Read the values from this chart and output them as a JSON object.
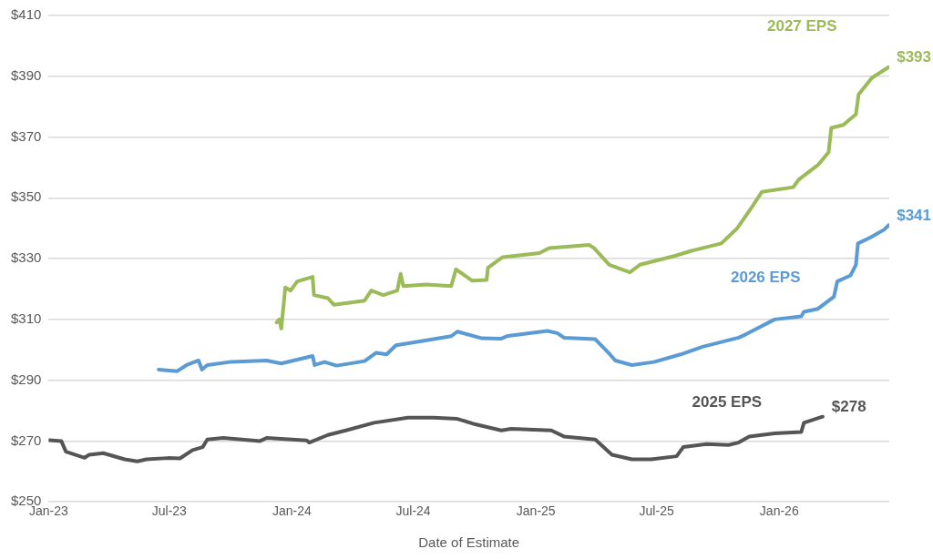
{
  "chart_data": {
    "type": "line",
    "xlabel": "Date of Estimate",
    "legend": false,
    "grid": "y",
    "marker": "none",
    "line_style": "solid",
    "xlim": [
      "2023-01-01",
      "2026-06-15"
    ],
    "xticks": [
      {
        "value": "2023-01-01",
        "label": "Jan-23"
      },
      {
        "value": "2023-07-01",
        "label": "Jul-23"
      },
      {
        "value": "2024-01-01",
        "label": "Jan-24"
      },
      {
        "value": "2024-07-01",
        "label": "Jul-24"
      },
      {
        "value": "2025-01-01",
        "label": "Jan-25"
      },
      {
        "value": "2025-07-01",
        "label": "Jul-25"
      },
      {
        "value": "2026-01-01",
        "label": "Jan-26"
      }
    ],
    "ylim": [
      250,
      410
    ],
    "yticks": [
      {
        "value": 250,
        "label": "$250"
      },
      {
        "value": 270,
        "label": "$270"
      },
      {
        "value": 290,
        "label": "$290"
      },
      {
        "value": 310,
        "label": "$310"
      },
      {
        "value": 330,
        "label": "$330"
      },
      {
        "value": 350,
        "label": "$350"
      },
      {
        "value": 370,
        "label": "$370"
      },
      {
        "value": 390,
        "label": "$390"
      },
      {
        "value": 410,
        "label": "$410"
      }
    ],
    "series": [
      {
        "name": "2025 EPS",
        "color": "#555555",
        "x": [
          "2023-01-02",
          "2023-01-20",
          "2023-01-27",
          "2023-02-24",
          "2023-03-03",
          "2023-03-24",
          "2023-04-25",
          "2023-05-14",
          "2023-05-28",
          "2023-06-29",
          "2023-07-17",
          "2023-08-05",
          "2023-08-20",
          "2023-08-27",
          "2023-09-20",
          "2023-11-14",
          "2023-11-24",
          "2024-01-23",
          "2024-01-27",
          "2024-02-24",
          "2024-03-22",
          "2024-05-03",
          "2024-06-23",
          "2024-07-31",
          "2024-09-05",
          "2024-10-02",
          "2024-11-10",
          "2024-11-25",
          "2025-01-24",
          "2025-02-12",
          "2025-03-31",
          "2025-04-25",
          "2025-05-25",
          "2025-06-23",
          "2025-07-31",
          "2025-08-10",
          "2025-09-14",
          "2025-10-17",
          "2025-11-01",
          "2025-11-17",
          "2025-12-25",
          "2026-02-03",
          "2026-02-07",
          "2026-03-07"
        ],
        "values": [
          270.3,
          270,
          266.5,
          264.5,
          265.5,
          266,
          264,
          263.3,
          264,
          264.4,
          264.3,
          267,
          268,
          270.5,
          271,
          270,
          271,
          270.2,
          269.5,
          272,
          273.5,
          276,
          277.7,
          277.7,
          277.3,
          275.5,
          273.5,
          274,
          273.5,
          271.5,
          270.5,
          265.5,
          264,
          264,
          265,
          268,
          269,
          268.7,
          269.5,
          271.5,
          272.5,
          273,
          276,
          278
        ],
        "value_labels": [
          null,
          null,
          null,
          null,
          null,
          null,
          null,
          null,
          null,
          null,
          null,
          null,
          null,
          null,
          null,
          null,
          null,
          null,
          null,
          null,
          null,
          null,
          null,
          null,
          null,
          null,
          null,
          null,
          null,
          null,
          null,
          null,
          null,
          null,
          null,
          null,
          null,
          null,
          null,
          null,
          null,
          null,
          null,
          "$278"
        ]
      },
      {
        "name": "2026 EPS",
        "color": "#5b9bd5",
        "x": [
          "2023-06-15",
          "2023-07-13",
          "2023-07-27",
          "2023-08-14",
          "2023-08-19",
          "2023-08-27",
          "2023-09-30",
          "2023-11-24",
          "2023-12-16",
          "2024-02-01",
          "2024-02-04",
          "2024-02-19",
          "2024-03-08",
          "2024-04-19",
          "2024-05-06",
          "2024-05-22",
          "2024-06-05",
          "2024-07-17",
          "2024-08-27",
          "2024-09-05",
          "2024-10-12",
          "2024-11-10",
          "2024-11-20",
          "2025-01-18",
          "2025-02-02",
          "2025-02-12",
          "2025-03-31",
          "2025-04-20",
          "2025-04-30",
          "2025-05-25",
          "2025-06-27",
          "2025-08-06",
          "2025-09-08",
          "2025-11-01",
          "2025-11-11",
          "2025-12-25",
          "2026-02-03",
          "2026-02-07",
          "2026-02-28",
          "2026-03-24",
          "2026-03-29",
          "2026-04-18",
          "2026-04-26",
          "2026-04-29",
          "2026-05-18",
          "2026-06-07",
          "2026-06-14"
        ],
        "values": [
          293.5,
          293,
          295,
          296.5,
          293.5,
          295,
          296,
          296.5,
          295.5,
          298,
          295,
          296,
          294.8,
          296.3,
          299,
          298.5,
          301.5,
          303,
          304.5,
          306,
          303.8,
          303.7,
          304.6,
          306.2,
          305.5,
          304,
          303.5,
          299,
          296.5,
          295,
          296,
          298.5,
          301,
          304,
          305,
          310,
          311,
          312.5,
          313.5,
          317.5,
          322.5,
          324.5,
          328,
          335,
          337,
          339.5,
          341
        ],
        "value_labels": [
          null,
          null,
          null,
          null,
          null,
          null,
          null,
          null,
          null,
          null,
          null,
          null,
          null,
          null,
          null,
          null,
          null,
          null,
          null,
          null,
          null,
          null,
          null,
          null,
          null,
          null,
          null,
          null,
          null,
          null,
          null,
          null,
          null,
          null,
          null,
          null,
          null,
          null,
          null,
          null,
          null,
          null,
          null,
          null,
          null,
          null,
          "$341"
        ]
      },
      {
        "name": "2027 EPS",
        "color": "#9bbb59",
        "x": [
          "2023-12-09",
          "2023-12-13",
          "2023-12-16",
          "2023-12-22",
          "2023-12-30",
          "2024-01-09",
          "2024-02-01",
          "2024-02-03",
          "2024-02-24",
          "2024-03-04",
          "2024-04-19",
          "2024-04-29",
          "2024-05-17",
          "2024-06-07",
          "2024-06-12",
          "2024-06-16",
          "2024-07-21",
          "2024-08-27",
          "2024-09-03",
          "2024-09-27",
          "2024-10-19",
          "2024-10-21",
          "2024-11-12",
          "2025-01-06",
          "2025-01-21",
          "2025-03-22",
          "2025-03-29",
          "2025-04-21",
          "2025-05-22",
          "2025-06-06",
          "2025-07-30",
          "2025-08-21",
          "2025-10-06",
          "2025-10-30",
          "2025-11-21",
          "2025-12-06",
          "2026-01-22",
          "2026-01-30",
          "2026-03-01",
          "2026-03-16",
          "2026-03-20",
          "2026-04-07",
          "2026-04-26",
          "2026-04-30",
          "2026-05-20",
          "2026-06-14"
        ],
        "values": [
          309,
          310,
          307,
          320.5,
          319.5,
          322.5,
          324,
          318,
          317,
          314.8,
          316.2,
          319.5,
          318,
          319.5,
          325,
          321,
          321.5,
          321,
          326.5,
          322.8,
          323,
          327,
          330.5,
          331.8,
          333.5,
          334.5,
          333.5,
          328,
          325.5,
          328,
          331,
          332.5,
          335,
          340,
          347,
          352,
          353.5,
          356,
          361,
          365,
          373,
          374,
          377.5,
          384,
          389.5,
          393
        ],
        "value_labels": [
          null,
          null,
          null,
          null,
          null,
          null,
          null,
          null,
          null,
          null,
          null,
          null,
          null,
          null,
          null,
          null,
          null,
          null,
          null,
          null,
          null,
          null,
          null,
          null,
          null,
          null,
          null,
          null,
          null,
          null,
          null,
          null,
          null,
          null,
          null,
          null,
          null,
          null,
          null,
          null,
          null,
          null,
          null,
          null,
          null,
          "$393"
        ]
      }
    ]
  }
}
